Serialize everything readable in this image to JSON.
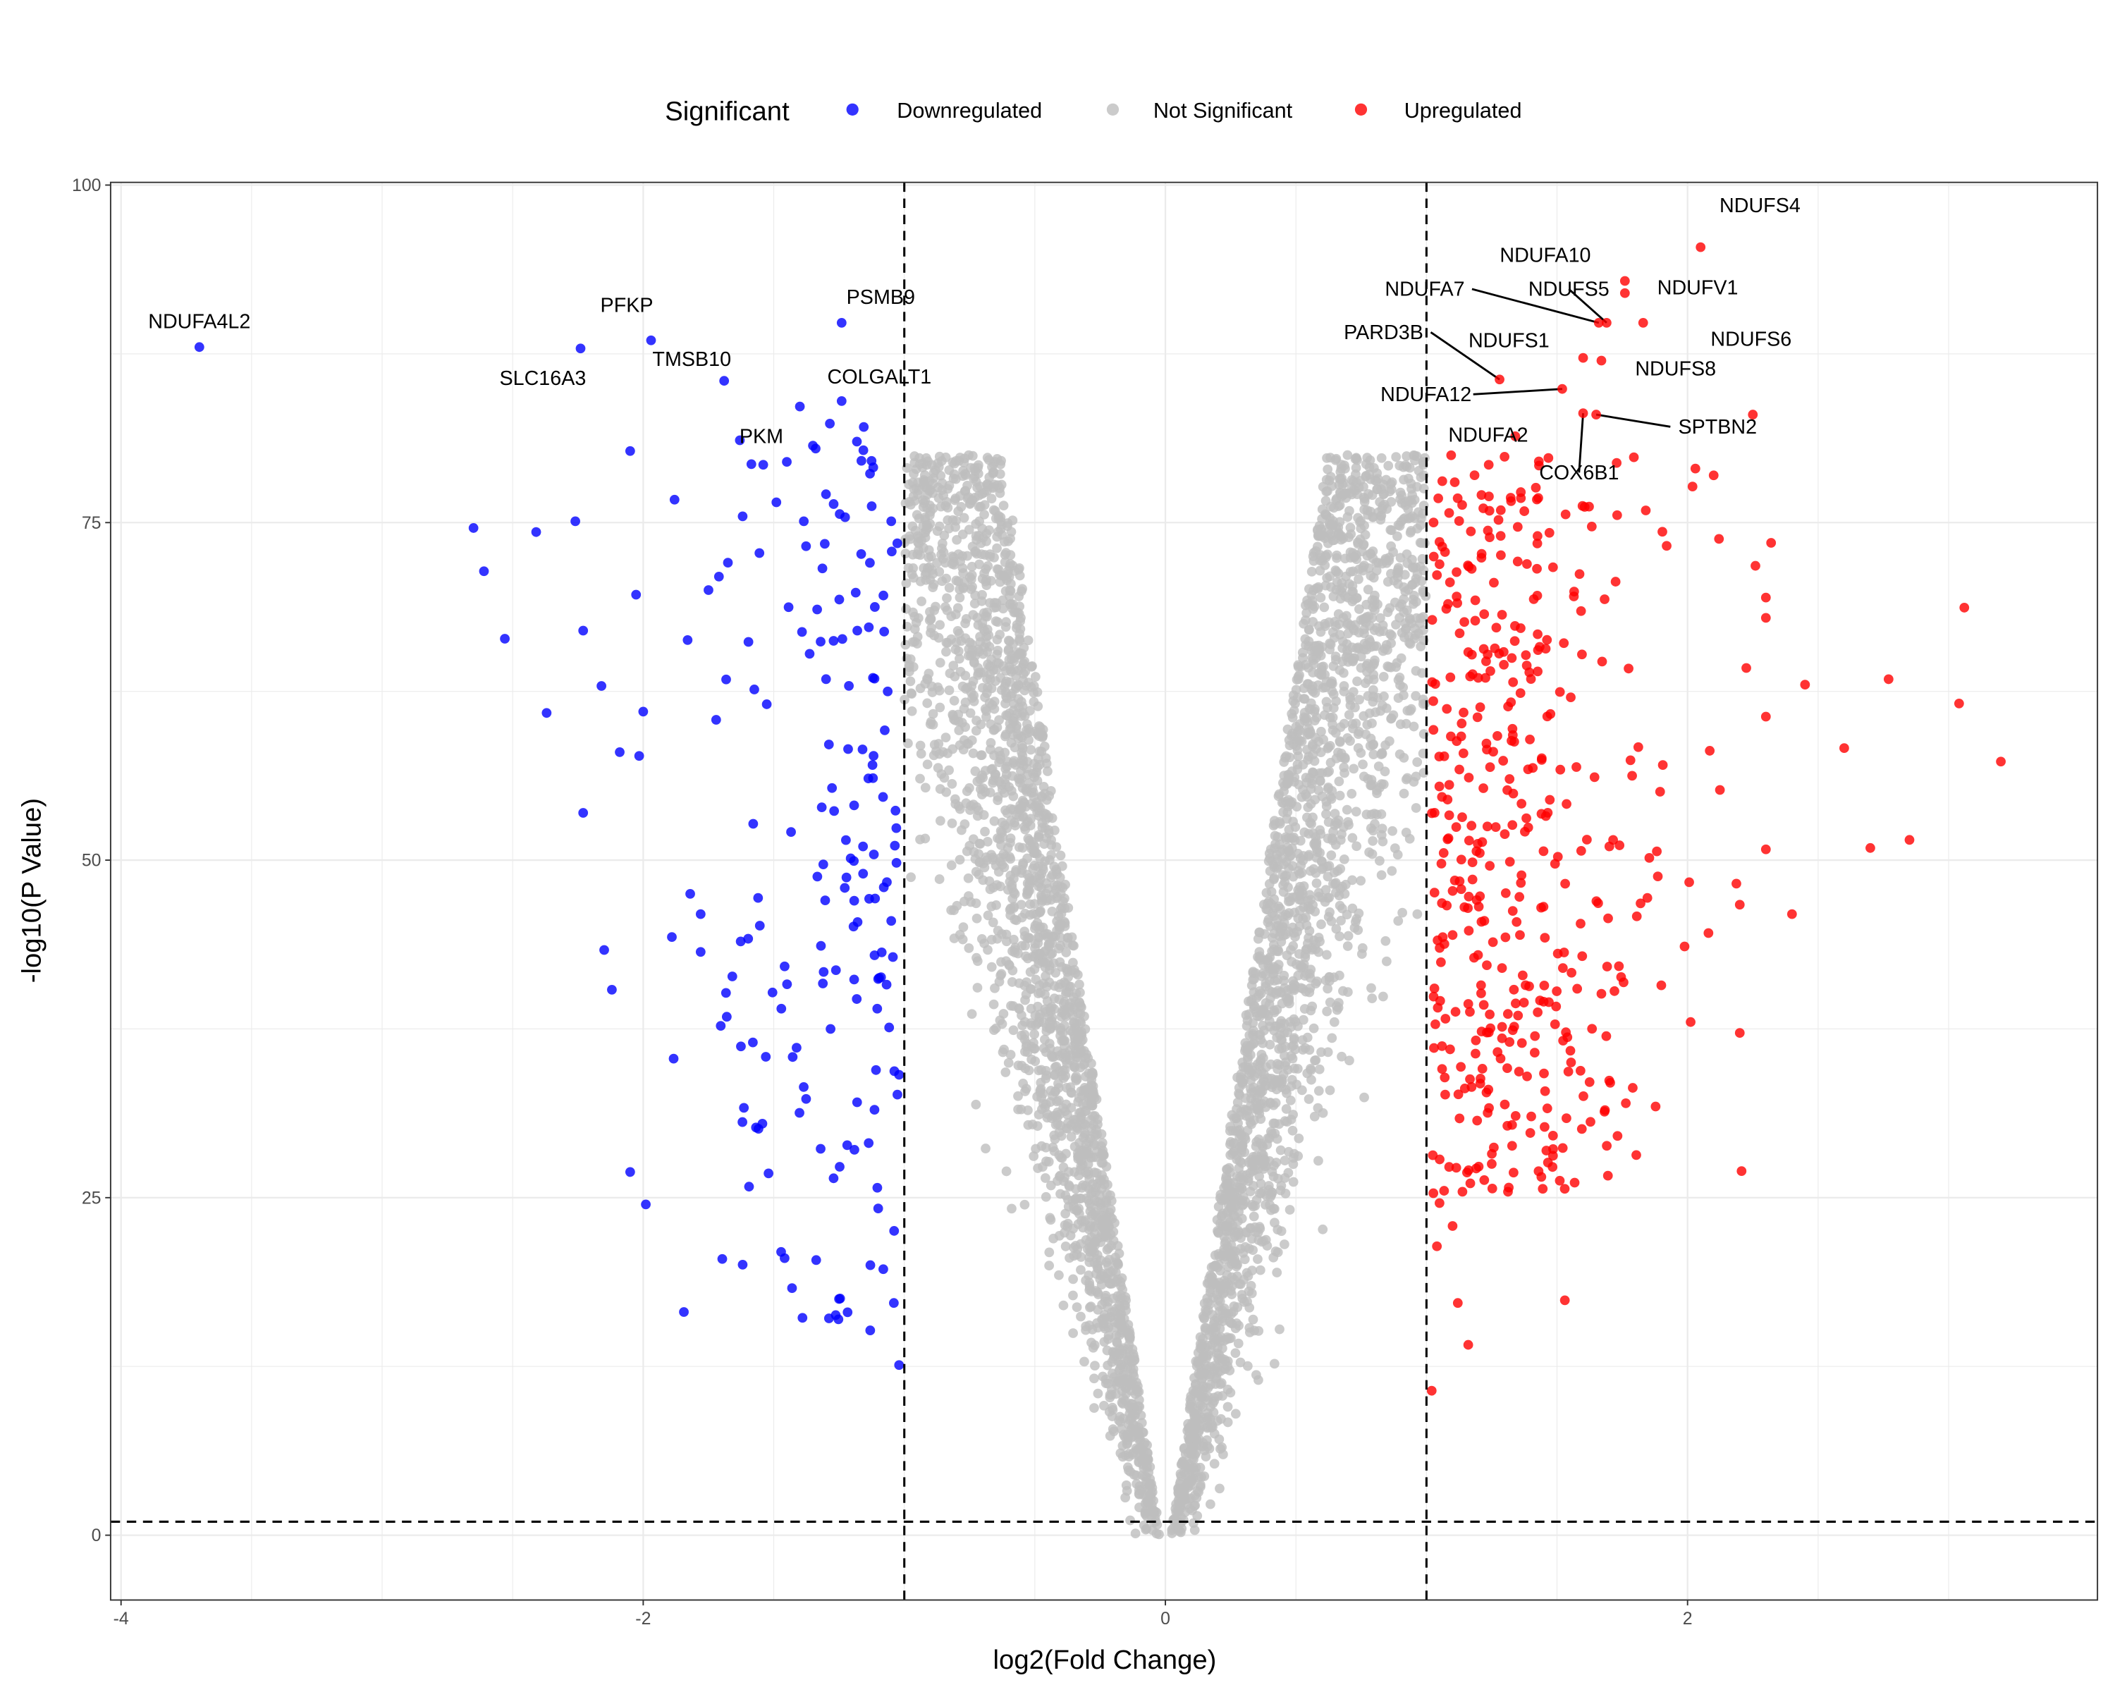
{
  "chart_data": {
    "type": "scatter",
    "title": "",
    "xlabel": "log2(Fold Change)",
    "ylabel": "-log10(P Value)",
    "xlim": [
      -4.04,
      3.57
    ],
    "ylim": [
      -4.8,
      100.2
    ],
    "x_ticks": [
      "-4",
      "-2",
      "0",
      "2"
    ],
    "x_tick_values": [
      -4,
      -2,
      0,
      2
    ],
    "y_ticks": [
      "0",
      "25",
      "50",
      "75",
      "100"
    ],
    "y_tick_values": [
      0,
      25,
      50,
      75,
      100
    ],
    "grid": true,
    "thresholds": {
      "log2fc": [
        -1,
        1
      ],
      "neg_log10_p": 1
    },
    "legend": {
      "title": "Significant",
      "placement": "top",
      "entries": [
        {
          "label": "Downregulated",
          "color": "#0000FF"
        },
        {
          "label": "Not Significant",
          "color": "#BEBEBE"
        },
        {
          "label": "Upregulated",
          "color": "#FF0000"
        }
      ]
    },
    "labeled_genes": [
      {
        "gene": "NDUFA4L2",
        "x": -3.7,
        "y": 88.0,
        "group": "Downregulated"
      },
      {
        "gene": "SLC16A3",
        "x": -2.24,
        "y": 87.9,
        "group": "Downregulated"
      },
      {
        "gene": "PFKP",
        "x": -1.97,
        "y": 88.5,
        "group": "Downregulated"
      },
      {
        "gene": "TMSB10",
        "x": -1.69,
        "y": 85.5,
        "group": "Downregulated"
      },
      {
        "gene": "PSMB9",
        "x": -1.24,
        "y": 89.8,
        "group": "Downregulated"
      },
      {
        "gene": "COLGALT1",
        "x": -1.24,
        "y": 84.0,
        "group": "Downregulated"
      },
      {
        "gene": "PKM",
        "x": -1.63,
        "y": 81.1,
        "group": "Downregulated"
      },
      {
        "gene": "NDUFS4",
        "x": 2.05,
        "y": 95.4,
        "group": "Upregulated"
      },
      {
        "gene": "NDUFA10",
        "x": 1.76,
        "y": 92.9,
        "group": "Upregulated"
      },
      {
        "gene": "NDUFV1",
        "x": 1.76,
        "y": 92.0,
        "group": "Upregulated"
      },
      {
        "gene": "NDUFA7",
        "x": 1.66,
        "y": 89.8,
        "group": "Upregulated"
      },
      {
        "gene": "NDUFS5",
        "x": 1.69,
        "y": 89.8,
        "group": "Upregulated"
      },
      {
        "gene": "NDUFS6",
        "x": 1.83,
        "y": 89.8,
        "group": "Upregulated"
      },
      {
        "gene": "NDUFS1",
        "x": 1.6,
        "y": 87.2,
        "group": "Upregulated"
      },
      {
        "gene": "PARD3B",
        "x": 1.28,
        "y": 85.6,
        "group": "Upregulated"
      },
      {
        "gene": "NDUFA12",
        "x": 1.52,
        "y": 84.9,
        "group": "Upregulated"
      },
      {
        "gene": "NDUFS8",
        "x": 1.67,
        "y": 87.0,
        "group": "Upregulated"
      },
      {
        "gene": "SPTBN2",
        "x": 1.65,
        "y": 83.0,
        "group": "Upregulated"
      },
      {
        "gene": "COX6B1",
        "x": 1.6,
        "y": 83.1,
        "group": "Upregulated"
      },
      {
        "gene": "NDUFA2",
        "x": 1.34,
        "y": 81.4,
        "group": "Upregulated"
      }
    ],
    "other_points": {
      "Downregulated": [
        [
          -2.65,
          74.6
        ],
        [
          -2.61,
          71.4
        ],
        [
          -2.53,
          66.4
        ],
        [
          -2.37,
          60.9
        ],
        [
          -2.41,
          74.3
        ],
        [
          -2.26,
          75.1
        ],
        [
          -2.23,
          67.0
        ],
        [
          -2.23,
          53.5
        ],
        [
          -2.16,
          62.9
        ],
        [
          -2.12,
          40.4
        ],
        [
          -2.09,
          58.0
        ],
        [
          -2.05,
          80.3
        ],
        [
          -2.05,
          26.9
        ],
        [
          -2.0,
          61.0
        ],
        [
          -1.99,
          24.5
        ],
        [
          -1.88,
          76.7
        ],
        [
          -1.83,
          66.3
        ],
        [
          -1.82,
          47.5
        ],
        [
          -1.78,
          43.2
        ],
        [
          -1.78,
          46.0
        ],
        [
          -1.75,
          70.0
        ],
        [
          -1.71,
          71.0
        ],
        [
          -1.68,
          38.4
        ],
        [
          -1.62,
          30.6
        ],
        [
          -1.58,
          36.5
        ],
        [
          -1.56,
          47.2
        ],
        [
          -1.52,
          26.8
        ],
        [
          -1.49,
          76.5
        ],
        [
          -1.45,
          79.5
        ],
        [
          -1.4,
          83.6
        ],
        [
          -1.35,
          80.7
        ],
        [
          -1.3,
          77.1
        ],
        [
          -1.18,
          67.0
        ],
        [
          -1.16,
          58.2
        ],
        [
          -1.12,
          63.5
        ],
        [
          -1.08,
          69.6
        ],
        [
          -1.05,
          75.1
        ],
        [
          -1.03,
          49.8
        ],
        [
          -1.02,
          12.6
        ],
        [
          -1.04,
          17.2
        ],
        [
          -1.1,
          24.2
        ],
        [
          -1.13,
          20.0
        ],
        [
          -1.25,
          17.5
        ],
        [
          -1.39,
          16.1
        ],
        [
          -1.43,
          18.3
        ],
        [
          -1.02,
          34.1
        ],
        [
          -1.05,
          45.5
        ],
        [
          -1.1,
          41.2
        ]
      ],
      "Upregulated": [
        [
          3.06,
          68.7
        ],
        [
          3.04,
          61.6
        ],
        [
          3.2,
          57.3
        ],
        [
          2.85,
          51.5
        ],
        [
          2.7,
          50.9
        ],
        [
          2.6,
          58.3
        ],
        [
          2.4,
          46.0
        ],
        [
          2.2,
          37.2
        ],
        [
          2.08,
          44.6
        ],
        [
          2.2,
          46.7
        ],
        [
          2.26,
          71.8
        ],
        [
          2.32,
          73.5
        ],
        [
          2.45,
          63.0
        ],
        [
          2.77,
          63.4
        ],
        [
          2.25,
          83.0
        ],
        [
          2.1,
          78.5
        ],
        [
          2.03,
          79.0
        ],
        [
          1.53,
          17.4
        ],
        [
          1.16,
          14.1
        ],
        [
          1.12,
          17.2
        ],
        [
          1.02,
          10.7
        ],
        [
          1.04,
          21.4
        ],
        [
          1.1,
          22.9
        ],
        [
          1.05,
          24.6
        ],
        [
          1.84,
          75.9
        ],
        [
          1.82,
          46.8
        ],
        [
          1.67,
          40.1
        ],
        [
          1.72,
          40.3
        ],
        [
          1.59,
          34.4
        ],
        [
          1.45,
          34.2
        ],
        [
          1.3,
          31.9
        ],
        [
          1.2,
          27.3
        ],
        [
          1.25,
          27.5
        ],
        [
          1.07,
          33.9
        ]
      ]
    },
    "not_significant_note": ""
  }
}
